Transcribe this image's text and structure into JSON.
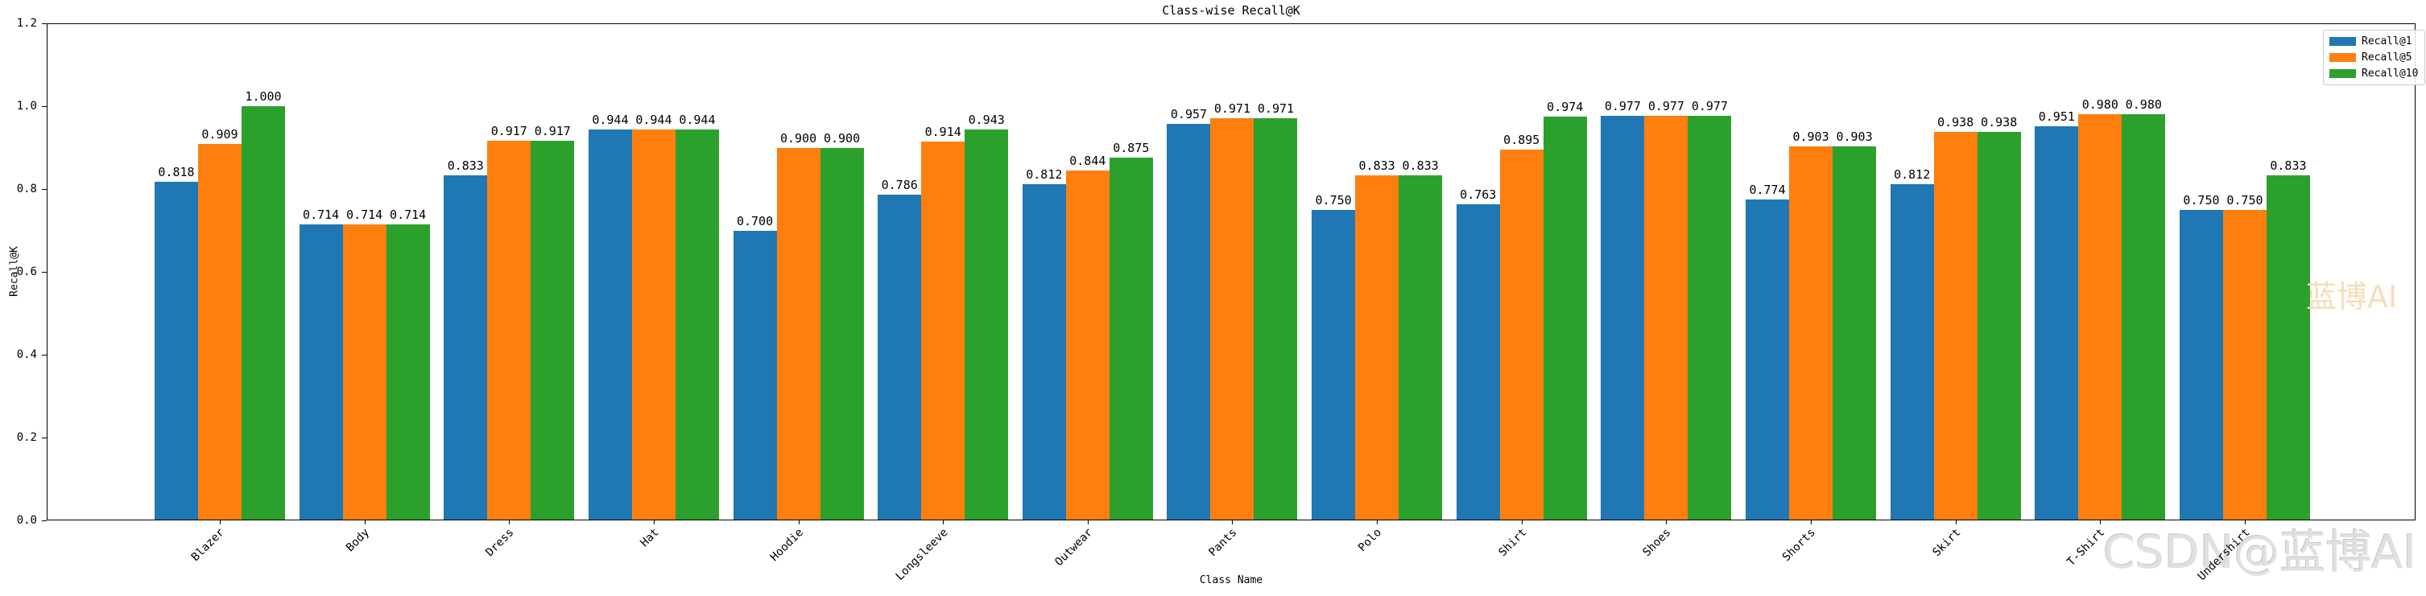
{
  "chart_data": {
    "type": "bar",
    "title": "Class-wise Recall@K",
    "xlabel": "Class Name",
    "ylabel": "Recall@K",
    "ylim": [
      0,
      1.2
    ],
    "yticks": [
      0.0,
      0.2,
      0.4,
      0.6,
      0.8,
      1.0,
      1.2
    ],
    "grid": false,
    "legend_position": "upper right",
    "value_label_decimals": 3,
    "categories": [
      "Blazer",
      "Body",
      "Dress",
      "Hat",
      "Hoodie",
      "Longsleeve",
      "Outwear",
      "Pants",
      "Polo",
      "Shirt",
      "Shoes",
      "Shorts",
      "Skirt",
      "T-Shirt",
      "Undershirt"
    ],
    "series": [
      {
        "name": "Recall@1",
        "color": "#1f77b4",
        "values": [
          0.818,
          0.714,
          0.833,
          0.944,
          0.7,
          0.786,
          0.812,
          0.957,
          0.75,
          0.763,
          0.977,
          0.774,
          0.812,
          0.951,
          0.75
        ]
      },
      {
        "name": "Recall@5",
        "color": "#ff7f0e",
        "values": [
          0.909,
          0.714,
          0.917,
          0.944,
          0.9,
          0.914,
          0.844,
          0.971,
          0.833,
          0.895,
          0.977,
          0.903,
          0.938,
          0.98,
          0.75
        ]
      },
      {
        "name": "Recall@10",
        "color": "#2ca02c",
        "values": [
          1.0,
          0.714,
          0.917,
          0.944,
          0.9,
          0.943,
          0.875,
          0.971,
          0.833,
          0.974,
          0.977,
          0.903,
          0.938,
          0.98,
          0.833
        ]
      }
    ]
  },
  "watermarks": {
    "center_right": "蓝博AI",
    "bottom_right": "CSDN@蓝博AI",
    "center_color": "#f8ddb9",
    "bottom_color": "#e0e0e0"
  }
}
